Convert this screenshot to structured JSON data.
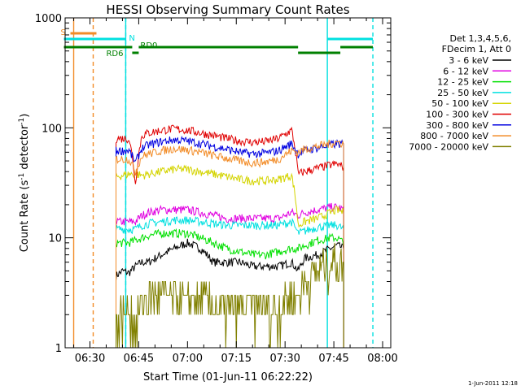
{
  "chart_data": {
    "type": "line",
    "title": "HESSI Observing Summary Count Rates",
    "xlabel": "Start Time (01-Jun-11 06:22:22)",
    "ylabel_parts": [
      "Count Rate (s",
      "-1",
      " detector",
      "-1",
      ")"
    ],
    "y_scale": "log",
    "xlim": [
      "06:22:22",
      "08:02:30"
    ],
    "ylim": [
      1,
      1000
    ],
    "x_ticks": [
      "06:30",
      "06:45",
      "07:00",
      "07:15",
      "07:30",
      "07:45",
      "08:00"
    ],
    "y_ticks": [
      "1",
      "10",
      "100",
      "1000"
    ],
    "legend_header": [
      "Det 1,3,4,5,6,",
      "FDecim 1, Att 0"
    ],
    "legend_position": "right",
    "timestamp": "1-Jun-2011 12:18",
    "markers": {
      "S": "S",
      "N": "N",
      "RD0": "RD0",
      "RD6": "RD6"
    },
    "intervals": {
      "S": [
        [
          "06:24",
          "06:32"
        ]
      ],
      "N": [
        [
          "06:22",
          "06:41"
        ],
        [
          "07:43",
          "07:57"
        ]
      ],
      "RD6": [
        [
          "06:22",
          "06:43"
        ],
        [
          "06:45",
          "07:34"
        ],
        [
          "07:47",
          "07:57"
        ]
      ],
      "RD0": [
        [
          "06:43",
          "06:45"
        ],
        [
          "07:34",
          "07:47"
        ]
      ],
      "vlines": [
        {
          "t": "06:25",
          "color": "#f28c28",
          "style": "solid"
        },
        {
          "t": "06:31",
          "color": "#f28c28",
          "style": "dashed"
        },
        {
          "t": "06:41",
          "color": "#00e0e0",
          "style": "solid"
        },
        {
          "t": "06:41",
          "color": "#00e0e0",
          "style": "dashed"
        },
        {
          "t": "07:43",
          "color": "#00e0e0",
          "style": "solid"
        },
        {
          "t": "07:57",
          "color": "#00e0e0",
          "style": "dashed"
        }
      ]
    },
    "data_window": [
      "06:38",
      "07:48"
    ],
    "x": [
      "06:38",
      "06:40",
      "06:42",
      "06:44",
      "06:46",
      "06:48",
      "06:52",
      "06:56",
      "07:00",
      "07:04",
      "07:08",
      "07:12",
      "07:16",
      "07:20",
      "07:24",
      "07:28",
      "07:32",
      "07:34",
      "07:36",
      "07:40",
      "07:44",
      "07:46",
      "07:48"
    ],
    "series": [
      {
        "name": "3 - 6 keV",
        "color": "#000000",
        "values": [
          4.5,
          5,
          4.8,
          5.5,
          6,
          6,
          7,
          8,
          9,
          8,
          6,
          6,
          6,
          5.5,
          5.5,
          5.5,
          6,
          5,
          6.5,
          7,
          8,
          8.5,
          8
        ]
      },
      {
        "name": "6 - 12 keV",
        "color": "#e000e0",
        "values": [
          14,
          14,
          14,
          14,
          16,
          17,
          18,
          18,
          18,
          17,
          16,
          15,
          15,
          15,
          15,
          15,
          17,
          16,
          17,
          18,
          19,
          19,
          18
        ]
      },
      {
        "name": "12 - 25 keV",
        "color": "#00e000",
        "values": [
          9,
          9,
          9,
          9.5,
          10,
          10.5,
          11,
          11,
          11,
          10,
          9,
          8,
          7.5,
          7,
          7,
          7.5,
          8,
          8,
          8.5,
          9.5,
          10,
          10,
          9
        ]
      },
      {
        "name": "25 - 50 keV",
        "color": "#00e0e0",
        "values": [
          12,
          12,
          12,
          12,
          13,
          13.5,
          14,
          14.5,
          14.5,
          14,
          13.5,
          13,
          13,
          13,
          13,
          13,
          14,
          11,
          11.5,
          12.5,
          13,
          13,
          12
        ]
      },
      {
        "name": "50 - 100 keV",
        "color": "#d4d400",
        "values": [
          36,
          37,
          38,
          38,
          37,
          38,
          40,
          42,
          42,
          40,
          38,
          36,
          34,
          33,
          33,
          34,
          37,
          13,
          14,
          15,
          17,
          18,
          17
        ]
      },
      {
        "name": "100 - 300 keV",
        "color": "#e00000",
        "values": [
          80,
          80,
          80,
          30,
          85,
          90,
          95,
          98,
          95,
          90,
          85,
          80,
          76,
          74,
          75,
          80,
          95,
          38,
          40,
          43,
          46,
          47,
          44
        ]
      },
      {
        "name": "300 - 800 keV",
        "color": "#0000e0",
        "values": [
          62,
          62,
          62,
          48,
          65,
          70,
          75,
          78,
          76,
          72,
          68,
          64,
          60,
          58,
          59,
          62,
          72,
          58,
          62,
          66,
          70,
          72,
          70
        ]
      },
      {
        "name": "800 - 7000 keV",
        "color": "#f28c28",
        "values": [
          52,
          52,
          52,
          40,
          55,
          58,
          62,
          65,
          63,
          60,
          56,
          53,
          50,
          48,
          49,
          52,
          62,
          60,
          64,
          68,
          72,
          74,
          72
        ]
      },
      {
        "name": "7000 - 20000 keV",
        "color": "#808000",
        "values": [
          1.8,
          2,
          2.5,
          1.6,
          2.5,
          3,
          3,
          2.8,
          2.5,
          2.8,
          2.5,
          2.2,
          2.3,
          2.4,
          2.3,
          2.3,
          3,
          3,
          4,
          5,
          6,
          6,
          6
        ]
      }
    ]
  }
}
